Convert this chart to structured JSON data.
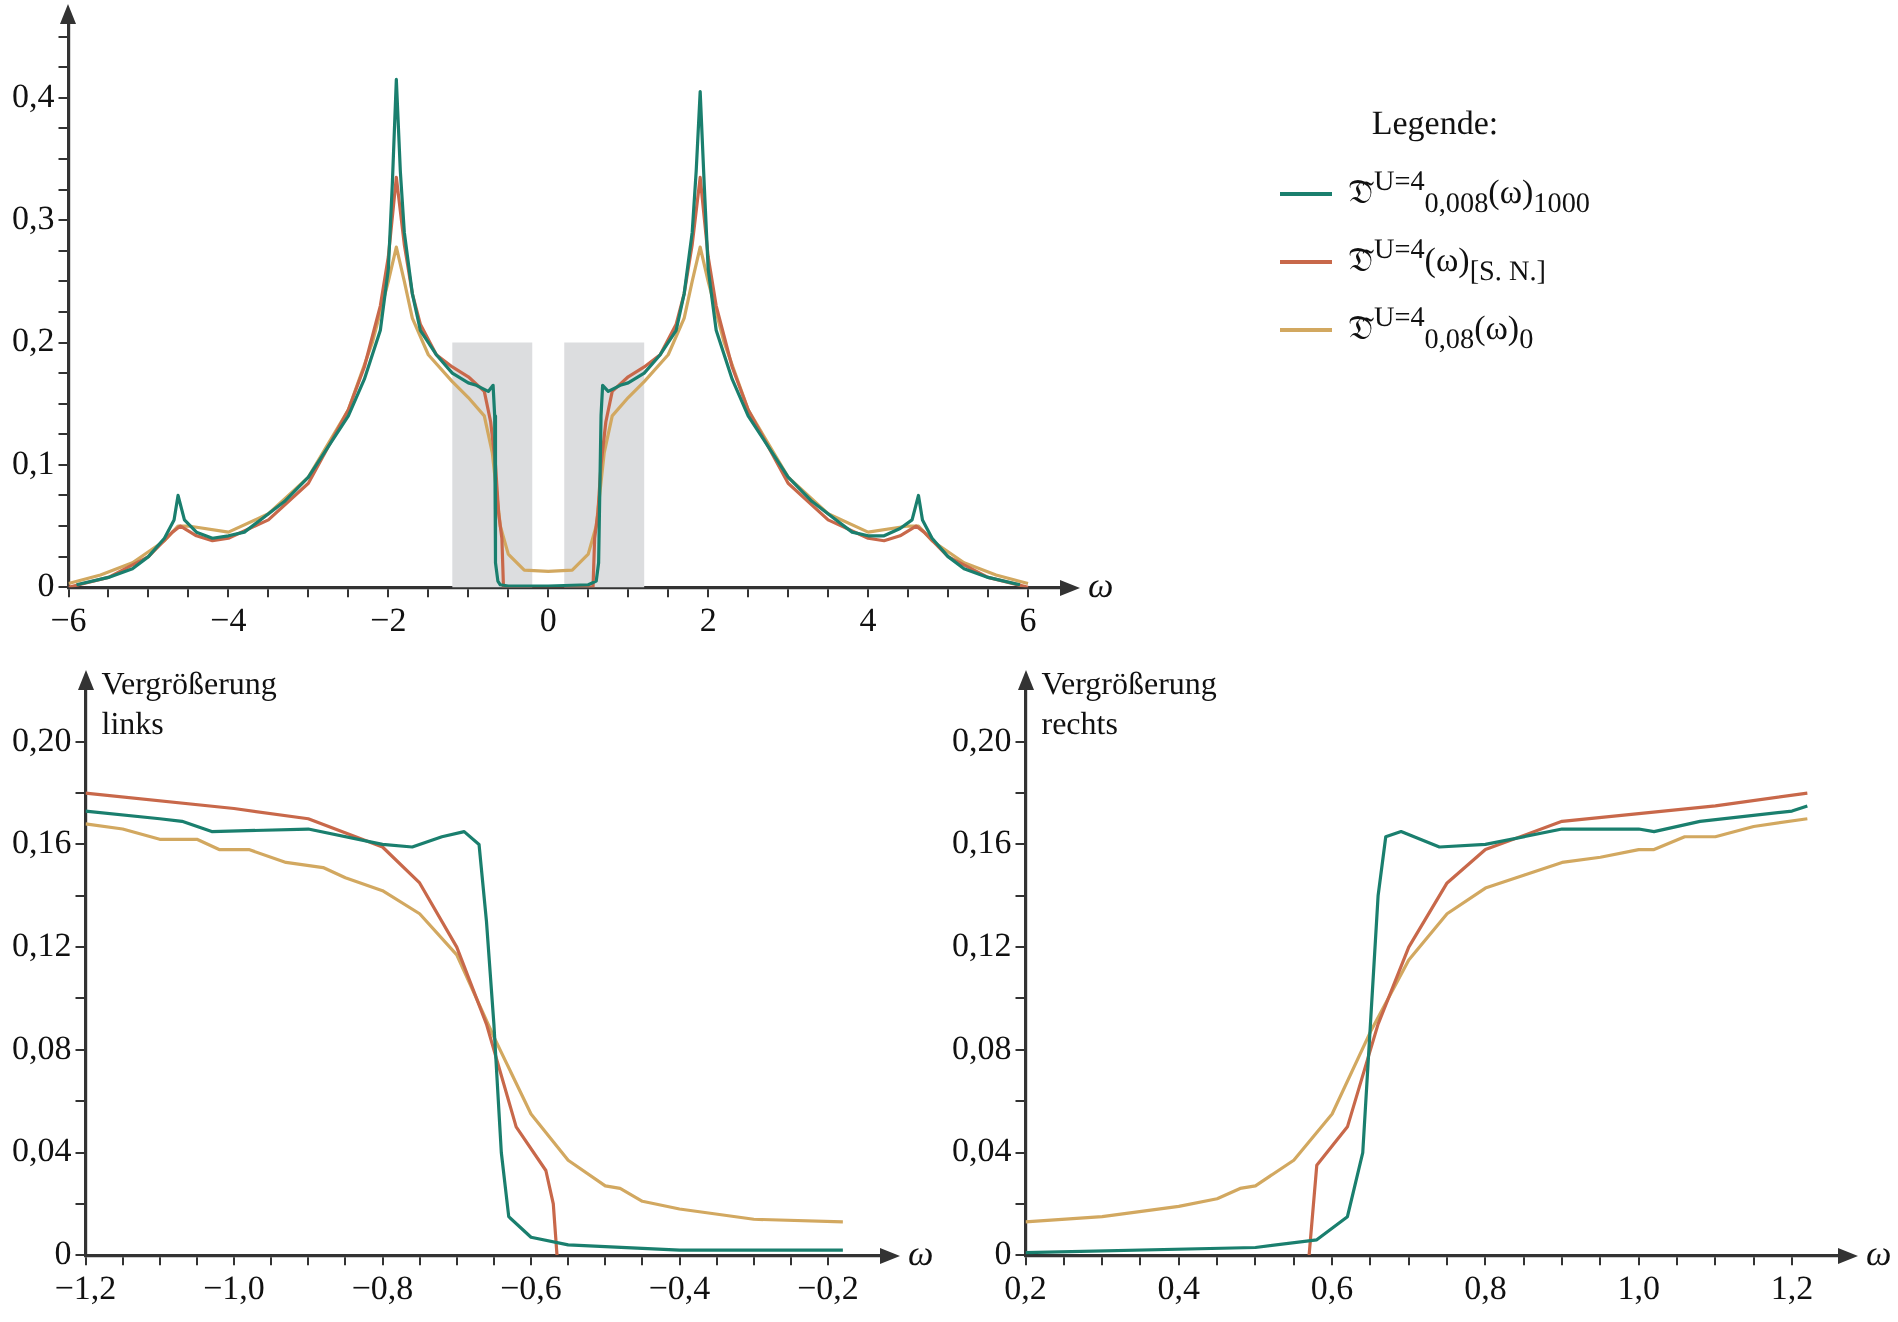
{
  "chart_data": [
    {
      "type": "line",
      "xlabel": "ω",
      "legend_title": "Legende:",
      "legend": "right",
      "xlim": [
        -6,
        6.4
      ],
      "ylim": [
        0,
        0.46
      ],
      "xticks": [
        {
          "value": -6,
          "label": "−6"
        },
        {
          "value": -5.5,
          "label": null
        },
        {
          "value": -5,
          "label": null
        },
        {
          "value": -4.5,
          "label": null
        },
        {
          "value": -4,
          "label": "−4"
        },
        {
          "value": -3.5,
          "label": null
        },
        {
          "value": -3,
          "label": null
        },
        {
          "value": -2.5,
          "label": null
        },
        {
          "value": -2,
          "label": "−2"
        },
        {
          "value": -1.5,
          "label": null
        },
        {
          "value": -1,
          "label": null
        },
        {
          "value": -0.5,
          "label": null
        },
        {
          "value": 0,
          "label": "0"
        },
        {
          "value": 0.5,
          "label": null
        },
        {
          "value": 1,
          "label": null
        },
        {
          "value": 1.5,
          "label": null
        },
        {
          "value": 2,
          "label": "2"
        },
        {
          "value": 2.5,
          "label": null
        },
        {
          "value": 3,
          "label": null
        },
        {
          "value": 3.5,
          "label": null
        },
        {
          "value": 4,
          "label": "4"
        },
        {
          "value": 4.5,
          "label": null
        },
        {
          "value": 5,
          "label": null
        },
        {
          "value": 5.5,
          "label": null
        },
        {
          "value": 6,
          "label": "6"
        }
      ],
      "yticks": [
        {
          "value": 0,
          "label": "0"
        },
        {
          "value": 0.025,
          "label": null
        },
        {
          "value": 0.05,
          "label": null
        },
        {
          "value": 0.075,
          "label": null
        },
        {
          "value": 0.1,
          "label": "0,1"
        },
        {
          "value": 0.125,
          "label": null
        },
        {
          "value": 0.15,
          "label": null
        },
        {
          "value": 0.175,
          "label": null
        },
        {
          "value": 0.2,
          "label": "0,2"
        },
        {
          "value": 0.225,
          "label": null
        },
        {
          "value": 0.25,
          "label": null
        },
        {
          "value": 0.275,
          "label": null
        },
        {
          "value": 0.3,
          "label": "0,3"
        },
        {
          "value": 0.325,
          "label": null
        },
        {
          "value": 0.35,
          "label": null
        },
        {
          "value": 0.375,
          "label": null
        },
        {
          "value": 0.4,
          "label": "0,4"
        },
        {
          "value": 0.425,
          "label": null
        },
        {
          "value": 0.45,
          "label": null
        }
      ],
      "bands": [
        {
          "axis": "x",
          "from": -1.2,
          "to": -0.2,
          "color": "#dcdddf"
        },
        {
          "axis": "x",
          "from": 0.2,
          "to": 1.2,
          "color": "#dcdddf"
        }
      ],
      "series": [
        {
          "name": "𝔇̃$^{U=4}$$_{0,008}$(ω)$_{1000}$",
          "color": "#1a7f6e",
          "x": [
            -5.9,
            -5.5,
            -5.2,
            -5,
            -4.8,
            -4.68,
            -4.63,
            -4.55,
            -4.4,
            -4.2,
            -4,
            -3.8,
            -3.6,
            -3.3,
            -3,
            -2.8,
            -2.5,
            -2.3,
            -2.1,
            -2,
            -1.95,
            -1.9,
            -1.85,
            -1.8,
            -1.7,
            -1.6,
            -1.4,
            -1.2,
            -1,
            -0.9,
            -0.75,
            -0.69,
            -0.67,
            -0.66,
            -0.63,
            -0.6,
            -0.5,
            0,
            0.5,
            0.6,
            0.63,
            0.66,
            0.68,
            0.75,
            0.9,
            1,
            1.2,
            1.4,
            1.6,
            1.7,
            1.8,
            1.85,
            1.9,
            1.95,
            2,
            2.1,
            2.3,
            2.5,
            2.8,
            3,
            3.3,
            3.6,
            3.8,
            4,
            4.2,
            4.4,
            4.55,
            4.63,
            4.68,
            4.8,
            5,
            5.2,
            5.5,
            5.9
          ],
          "values": [
            0.002,
            0.008,
            0.015,
            0.025,
            0.04,
            0.055,
            0.075,
            0.055,
            0.045,
            0.04,
            0.042,
            0.045,
            0.055,
            0.07,
            0.09,
            0.11,
            0.14,
            0.17,
            0.21,
            0.26,
            0.33,
            0.415,
            0.34,
            0.29,
            0.24,
            0.21,
            0.19,
            0.175,
            0.167,
            0.165,
            0.16,
            0.165,
            0.14,
            0.02,
            0.005,
            0.002,
            0.001,
            0.001,
            0.002,
            0.005,
            0.02,
            0.14,
            0.165,
            0.16,
            0.165,
            0.167,
            0.175,
            0.19,
            0.21,
            0.24,
            0.29,
            0.34,
            0.405,
            0.33,
            0.26,
            0.21,
            0.17,
            0.14,
            0.11,
            0.09,
            0.07,
            0.055,
            0.045,
            0.042,
            0.042,
            0.048,
            0.055,
            0.075,
            0.055,
            0.04,
            0.025,
            0.015,
            0.008,
            0.002
          ]
        },
        {
          "name": "𝔇̃$^{U=4}$(ω)$_{[S. N.]}$",
          "color": "#c8684a",
          "x": [
            -6,
            -5.5,
            -5,
            -4.7,
            -4.6,
            -4.4,
            -4.2,
            -4,
            -3.5,
            -3,
            -2.5,
            -2.3,
            -2.1,
            -2,
            -1.9,
            -1.8,
            -1.7,
            -1.6,
            -1.4,
            -1.2,
            -1,
            -0.8,
            -0.72,
            -0.66,
            -0.62,
            -0.58,
            -0.56,
            0,
            0.56,
            0.58,
            0.62,
            0.66,
            0.72,
            0.8,
            1,
            1.2,
            1.4,
            1.6,
            1.7,
            1.8,
            1.9,
            2,
            2.1,
            2.3,
            2.5,
            3,
            3.5,
            4,
            4.2,
            4.4,
            4.6,
            4.7,
            5,
            5.5,
            6
          ],
          "values": [
            0,
            0.008,
            0.025,
            0.045,
            0.05,
            0.042,
            0.038,
            0.04,
            0.055,
            0.085,
            0.145,
            0.18,
            0.23,
            0.27,
            0.335,
            0.28,
            0.24,
            0.215,
            0.19,
            0.18,
            0.172,
            0.16,
            0.135,
            0.1,
            0.06,
            0.04,
            0,
            0,
            0,
            0.04,
            0.06,
            0.1,
            0.135,
            0.16,
            0.172,
            0.18,
            0.19,
            0.215,
            0.24,
            0.28,
            0.335,
            0.27,
            0.23,
            0.18,
            0.145,
            0.085,
            0.055,
            0.04,
            0.038,
            0.042,
            0.05,
            0.045,
            0.025,
            0.008,
            0
          ]
        },
        {
          "name": "𝔇̃$^{U=4}$$_{0,08}$(ω)$_{0}$",
          "color": "#d2a860",
          "x": [
            -6,
            -5.6,
            -5.2,
            -4.8,
            -4.63,
            -4.5,
            -4,
            -3.5,
            -3,
            -2.5,
            -2.2,
            -2,
            -1.9,
            -1.8,
            -1.7,
            -1.5,
            -1.2,
            -1,
            -0.8,
            -0.7,
            -0.6,
            -0.5,
            -0.3,
            0,
            0.3,
            0.5,
            0.6,
            0.7,
            0.8,
            1,
            1.2,
            1.5,
            1.7,
            1.8,
            1.9,
            2,
            2.2,
            2.5,
            3,
            3.5,
            4,
            4.5,
            4.63,
            4.8,
            5.2,
            5.6,
            6
          ],
          "values": [
            0.003,
            0.01,
            0.02,
            0.038,
            0.05,
            0.05,
            0.045,
            0.06,
            0.09,
            0.145,
            0.2,
            0.25,
            0.278,
            0.25,
            0.22,
            0.19,
            0.168,
            0.155,
            0.14,
            0.11,
            0.05,
            0.027,
            0.014,
            0.013,
            0.014,
            0.027,
            0.05,
            0.11,
            0.14,
            0.155,
            0.168,
            0.19,
            0.22,
            0.25,
            0.278,
            0.25,
            0.2,
            0.145,
            0.09,
            0.06,
            0.045,
            0.05,
            0.05,
            0.038,
            0.02,
            0.01,
            0.003
          ]
        }
      ]
    },
    {
      "type": "line",
      "xlabel": "ω",
      "ylabel": "Vergrößerung links",
      "xlim": [
        -1.2,
        -0.13
      ],
      "ylim": [
        0,
        0.22
      ],
      "xticks": [
        {
          "value": -1.2,
          "label": "−1,2"
        },
        {
          "value": -1.15,
          "label": null
        },
        {
          "value": -1.1,
          "label": null
        },
        {
          "value": -1.05,
          "label": null
        },
        {
          "value": -1,
          "label": "−1,0"
        },
        {
          "value": -0.95,
          "label": null
        },
        {
          "value": -0.9,
          "label": null
        },
        {
          "value": -0.85,
          "label": null
        },
        {
          "value": -0.8,
          "label": "−0,8"
        },
        {
          "value": -0.75,
          "label": null
        },
        {
          "value": -0.7,
          "label": null
        },
        {
          "value": -0.65,
          "label": null
        },
        {
          "value": -0.6,
          "label": "−0,6"
        },
        {
          "value": -0.55,
          "label": null
        },
        {
          "value": -0.5,
          "label": null
        },
        {
          "value": -0.45,
          "label": null
        },
        {
          "value": -0.4,
          "label": "−0,4"
        },
        {
          "value": -0.35,
          "label": null
        },
        {
          "value": -0.3,
          "label": null
        },
        {
          "value": -0.25,
          "label": null
        },
        {
          "value": -0.2,
          "label": "−0,2"
        }
      ],
      "yticks": [
        {
          "value": 0,
          "label": "0"
        },
        {
          "value": 0.02,
          "label": null
        },
        {
          "value": 0.04,
          "label": "0,04"
        },
        {
          "value": 0.06,
          "label": null
        },
        {
          "value": 0.08,
          "label": "0,08"
        },
        {
          "value": 0.1,
          "label": null
        },
        {
          "value": 0.12,
          "label": "0,12"
        },
        {
          "value": 0.14,
          "label": null
        },
        {
          "value": 0.16,
          "label": "0,16"
        },
        {
          "value": 0.18,
          "label": null
        },
        {
          "value": 0.2,
          "label": "0,20"
        }
      ],
      "series": [
        {
          "color": "#1a7f6e",
          "x": [
            -1.2,
            -1.1,
            -1.07,
            -1.03,
            -0.9,
            -0.8,
            -0.76,
            -0.72,
            -0.69,
            -0.67,
            -0.66,
            -0.65,
            -0.64,
            -0.63,
            -0.6,
            -0.55,
            -0.4,
            -0.18
          ],
          "values": [
            0.173,
            0.17,
            0.169,
            0.165,
            0.166,
            0.16,
            0.159,
            0.163,
            0.165,
            0.16,
            0.13,
            0.09,
            0.04,
            0.015,
            0.007,
            0.004,
            0.002,
            0.002
          ]
        },
        {
          "color": "#c8684a",
          "x": [
            -1.2,
            -1,
            -0.9,
            -0.8,
            -0.75,
            -0.7,
            -0.66,
            -0.62,
            -0.58,
            -0.57,
            -0.565
          ],
          "values": [
            0.18,
            0.174,
            0.17,
            0.159,
            0.145,
            0.12,
            0.09,
            0.05,
            0.033,
            0.02,
            0
          ]
        },
        {
          "color": "#d2a860",
          "x": [
            -1.2,
            -1.15,
            -1.1,
            -1.05,
            -1.02,
            -0.98,
            -0.93,
            -0.88,
            -0.85,
            -0.8,
            -0.75,
            -0.7,
            -0.65,
            -0.6,
            -0.55,
            -0.5,
            -0.48,
            -0.45,
            -0.4,
            -0.3,
            -0.18
          ],
          "values": [
            0.168,
            0.166,
            0.162,
            0.162,
            0.158,
            0.158,
            0.153,
            0.151,
            0.147,
            0.142,
            0.133,
            0.117,
            0.085,
            0.055,
            0.037,
            0.027,
            0.026,
            0.021,
            0.018,
            0.014,
            0.013
          ]
        }
      ]
    },
    {
      "type": "line",
      "xlabel": "ω",
      "ylabel": "Vergrößerung rechts",
      "xlim": [
        0.2,
        1.26
      ],
      "ylim": [
        0,
        0.22
      ],
      "xticks": [
        {
          "value": 0.2,
          "label": "0,2"
        },
        {
          "value": 0.25,
          "label": null
        },
        {
          "value": 0.3,
          "label": null
        },
        {
          "value": 0.35,
          "label": null
        },
        {
          "value": 0.4,
          "label": "0,4"
        },
        {
          "value": 0.45,
          "label": null
        },
        {
          "value": 0.5,
          "label": null
        },
        {
          "value": 0.55,
          "label": null
        },
        {
          "value": 0.6,
          "label": "0,6"
        },
        {
          "value": 0.65,
          "label": null
        },
        {
          "value": 0.7,
          "label": null
        },
        {
          "value": 0.75,
          "label": null
        },
        {
          "value": 0.8,
          "label": "0,8"
        },
        {
          "value": 0.85,
          "label": null
        },
        {
          "value": 0.9,
          "label": null
        },
        {
          "value": 0.95,
          "label": null
        },
        {
          "value": 1,
          "label": "1,0"
        },
        {
          "value": 1.05,
          "label": null
        },
        {
          "value": 1.1,
          "label": null
        },
        {
          "value": 1.15,
          "label": null
        },
        {
          "value": 1.2,
          "label": "1,2"
        }
      ],
      "yticks": [
        {
          "value": 0,
          "label": "0"
        },
        {
          "value": 0.02,
          "label": null
        },
        {
          "value": 0.04,
          "label": "0,04"
        },
        {
          "value": 0.06,
          "label": null
        },
        {
          "value": 0.08,
          "label": "0,08"
        },
        {
          "value": 0.1,
          "label": null
        },
        {
          "value": 0.12,
          "label": "0,12"
        },
        {
          "value": 0.14,
          "label": null
        },
        {
          "value": 0.16,
          "label": "0,16"
        },
        {
          "value": 0.18,
          "label": null
        },
        {
          "value": 0.2,
          "label": "0,20"
        }
      ],
      "series": [
        {
          "color": "#1a7f6e",
          "x": [
            0.2,
            0.5,
            0.58,
            0.62,
            0.64,
            0.65,
            0.66,
            0.67,
            0.69,
            0.74,
            0.8,
            0.9,
            1,
            1.02,
            1.08,
            1.2,
            1.22
          ],
          "values": [
            0.001,
            0.003,
            0.006,
            0.015,
            0.04,
            0.09,
            0.14,
            0.163,
            0.165,
            0.159,
            0.16,
            0.166,
            0.166,
            0.165,
            0.169,
            0.173,
            0.175
          ]
        },
        {
          "color": "#c8684a",
          "x": [
            0.57,
            0.58,
            0.62,
            0.66,
            0.7,
            0.75,
            0.8,
            0.9,
            1,
            1.1,
            1.22
          ],
          "values": [
            0,
            0.035,
            0.05,
            0.09,
            0.12,
            0.145,
            0.158,
            0.169,
            0.172,
            0.175,
            0.18
          ]
        },
        {
          "color": "#d2a860",
          "x": [
            0.2,
            0.3,
            0.4,
            0.45,
            0.48,
            0.5,
            0.55,
            0.6,
            0.65,
            0.7,
            0.75,
            0.8,
            0.85,
            0.9,
            0.95,
            1,
            1.02,
            1.06,
            1.1,
            1.15,
            1.22
          ],
          "values": [
            0.013,
            0.015,
            0.019,
            0.022,
            0.026,
            0.027,
            0.037,
            0.055,
            0.087,
            0.115,
            0.133,
            0.143,
            0.148,
            0.153,
            0.155,
            0.158,
            0.158,
            0.163,
            0.163,
            0.167,
            0.17
          ]
        }
      ]
    }
  ]
}
